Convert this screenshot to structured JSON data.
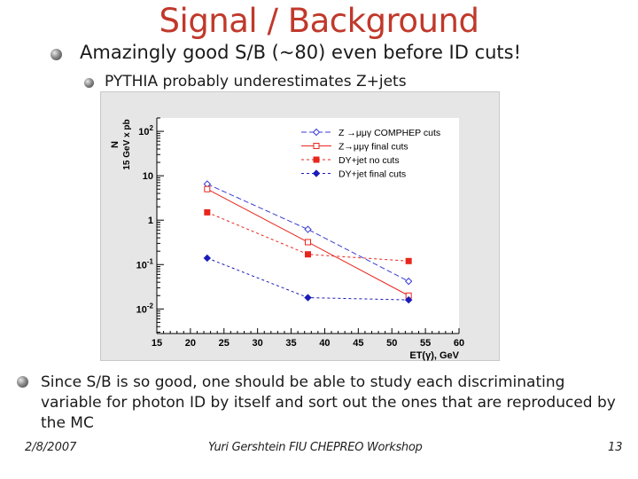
{
  "slide": {
    "title": "Signal / Background",
    "bullet1": "Amazingly good S/B (~80) even before ID cuts!",
    "bullet2": "PYTHIA probably underestimates Z+jets",
    "bullet3": "Since S/B is so good, one should be able to study each discriminating variable for photon ID by itself and sort out the ones that are reproduced by the MC",
    "footer_date": "2/8/2007",
    "footer_center": "Yuri Gershtein FIU CHEPREO Workshop",
    "slide_number": "13"
  },
  "chart_data": {
    "type": "line",
    "title": "",
    "xlabel": "ET(γ), GeV",
    "ylabel_line1": "N",
    "ylabel_line2": "15 GeV x pb",
    "xlim": [
      15,
      60
    ],
    "ylim": [
      0.0028,
      200
    ],
    "yscale": "log",
    "x_ticks": [
      15,
      20,
      25,
      30,
      35,
      40,
      45,
      50,
      55,
      60
    ],
    "y_tick_values": [
      100,
      10,
      1,
      0.1,
      0.01
    ],
    "y_tick_labels": [
      "10^2",
      "10",
      "1",
      "10^-1",
      "10^-2"
    ],
    "legend_position": "top-right",
    "series": [
      {
        "name": "Z→μμγ COMPHEP cuts",
        "legend_label": "Z →μμγ COMPHEP cuts",
        "color": "#3b3bd6",
        "marker": "open-diamond",
        "dash": "6,3",
        "x": [
          22.5,
          37.5,
          52.5
        ],
        "y": [
          6.5,
          0.62,
          0.042
        ]
      },
      {
        "name": "Z→μμγ final cuts",
        "legend_label": "Z→μμγ final cuts",
        "color": "#e8261d",
        "marker": "open-square",
        "dash": "",
        "x": [
          22.5,
          37.5,
          52.5
        ],
        "y": [
          5.0,
          0.32,
          0.02
        ]
      },
      {
        "name": "DY+jet no cuts",
        "legend_label": "DY+jet no cuts",
        "color": "#e8261d",
        "marker": "filled-square",
        "dash": "3,3",
        "x": [
          22.5,
          37.5,
          52.5
        ],
        "y": [
          1.5,
          0.17,
          0.12
        ]
      },
      {
        "name": "DY+jet final cuts",
        "legend_label": "DY+jet final cuts",
        "color": "#1c1cb8",
        "marker": "filled-diamond",
        "dash": "3,3",
        "x": [
          22.5,
          37.5,
          52.5
        ],
        "y": [
          0.14,
          0.018,
          0.016
        ]
      }
    ]
  }
}
